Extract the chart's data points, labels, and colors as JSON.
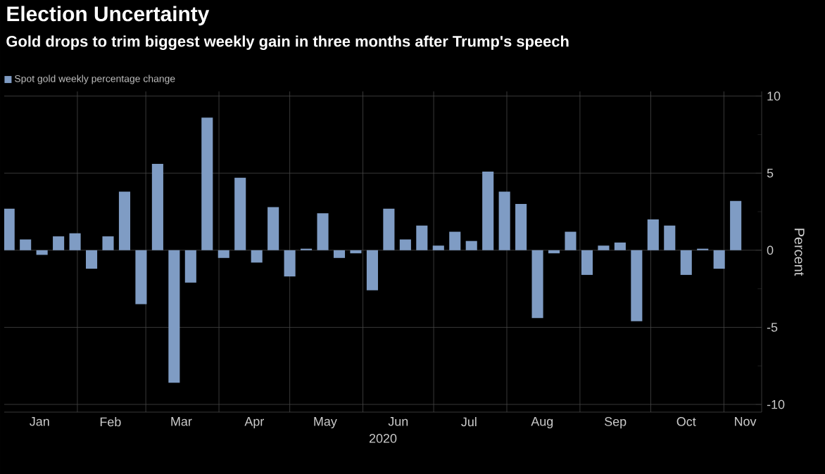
{
  "chart_data": {
    "type": "bar",
    "title": "Election Uncertainty",
    "subtitle": "Gold drops to trim biggest weekly gain in three months after Trump's speech",
    "xlabel": "2020",
    "ylabel": "Percent",
    "x": [
      "2020-01-03",
      "2020-01-10",
      "2020-01-17",
      "2020-01-24",
      "2020-01-31",
      "2020-02-07",
      "2020-02-14",
      "2020-02-21",
      "2020-02-28",
      "2020-03-06",
      "2020-03-13",
      "2020-03-20",
      "2020-03-27",
      "2020-04-03",
      "2020-04-10",
      "2020-04-17",
      "2020-04-24",
      "2020-05-01",
      "2020-05-08",
      "2020-05-15",
      "2020-05-22",
      "2020-05-29",
      "2020-06-05",
      "2020-06-12",
      "2020-06-19",
      "2020-06-26",
      "2020-07-03",
      "2020-07-10",
      "2020-07-17",
      "2020-07-24",
      "2020-07-31",
      "2020-08-07",
      "2020-08-14",
      "2020-08-21",
      "2020-08-28",
      "2020-09-04",
      "2020-09-11",
      "2020-09-18",
      "2020-09-25",
      "2020-10-02",
      "2020-10-09",
      "2020-10-16",
      "2020-10-23",
      "2020-10-30",
      "2020-11-06"
    ],
    "series": [
      {
        "name": "Spot gold weekly percentage change",
        "color": "#7f9cc4",
        "values": [
          2.7,
          0.7,
          -0.3,
          0.9,
          1.1,
          -1.2,
          0.9,
          3.8,
          -3.5,
          5.6,
          -8.6,
          -2.1,
          8.6,
          -0.5,
          4.7,
          -0.8,
          2.8,
          -1.7,
          0.1,
          2.4,
          -0.5,
          -0.2,
          -2.6,
          2.7,
          0.7,
          1.6,
          0.3,
          1.2,
          0.6,
          5.1,
          3.8,
          3.0,
          -4.4,
          -0.2,
          1.2,
          -1.6,
          0.3,
          0.5,
          -4.6,
          2.0,
          1.6,
          -1.6,
          0.1,
          -1.2,
          3.2
        ]
      }
    ],
    "xlim": [
      "2020-01-01",
      "2020-11-17"
    ],
    "xticks": [
      {
        "value": "2020-01-16",
        "label": "Jan"
      },
      {
        "value": "2020-02-01",
        "label": null
      },
      {
        "value": "2020-02-15",
        "label": "Feb"
      },
      {
        "value": "2020-03-01",
        "label": null
      },
      {
        "value": "2020-03-16",
        "label": "Mar"
      },
      {
        "value": "2020-04-01",
        "label": null
      },
      {
        "value": "2020-04-16",
        "label": "Apr"
      },
      {
        "value": "2020-05-01",
        "label": null
      },
      {
        "value": "2020-05-16",
        "label": "May"
      },
      {
        "value": "2020-06-01",
        "label": null
      },
      {
        "value": "2020-06-16",
        "label": "Jun"
      },
      {
        "value": "2020-07-01",
        "label": null
      },
      {
        "value": "2020-07-16",
        "label": "Jul"
      },
      {
        "value": "2020-08-01",
        "label": null
      },
      {
        "value": "2020-08-16",
        "label": "Aug"
      },
      {
        "value": "2020-09-01",
        "label": null
      },
      {
        "value": "2020-09-16",
        "label": "Sep"
      },
      {
        "value": "2020-10-01",
        "label": null
      },
      {
        "value": "2020-10-16",
        "label": "Oct"
      },
      {
        "value": "2020-11-01",
        "label": null
      },
      {
        "value": "2020-11-10",
        "label": "Nov"
      }
    ],
    "ylim": [
      -10.5,
      10.3
    ],
    "yticks": [
      -10,
      -5,
      0,
      5,
      10
    ],
    "grid": true,
    "legend": "top left"
  }
}
